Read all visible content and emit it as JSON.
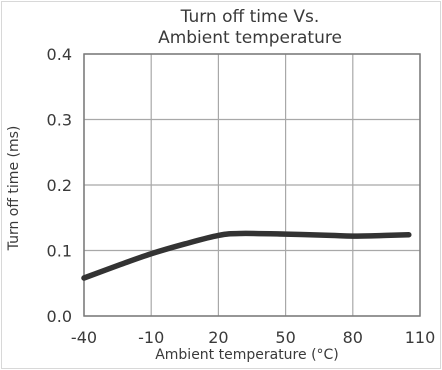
{
  "chart_data": {
    "type": "line",
    "title_lines": [
      "Turn off time Vs.",
      "Ambient temperature"
    ],
    "xlabel": "Ambient temperature (°C)",
    "ylabel": "Turn off time  (ms)",
    "x_ticks": [
      "-40",
      "-10",
      "20",
      "50",
      "80",
      "110"
    ],
    "y_ticks": [
      "0.0",
      "0.1",
      "0.2",
      "0.3",
      "0.4"
    ],
    "xlim": [
      -40,
      110
    ],
    "ylim": [
      0,
      0.4
    ],
    "grid": true,
    "colors": {
      "line": "#333333",
      "grid": "#a8a8a8",
      "frame": "#7a7a7a",
      "text": "#3a3a3a",
      "outer_border": "#d8d8d8"
    },
    "series": [
      {
        "x": [
          -40,
          -25,
          -10,
          5,
          20,
          30,
          50,
          70,
          80,
          95,
          105
        ],
        "y": [
          0.058,
          0.077,
          0.095,
          0.11,
          0.123,
          0.126,
          0.125,
          0.123,
          0.122,
          0.123,
          0.124
        ]
      }
    ]
  }
}
